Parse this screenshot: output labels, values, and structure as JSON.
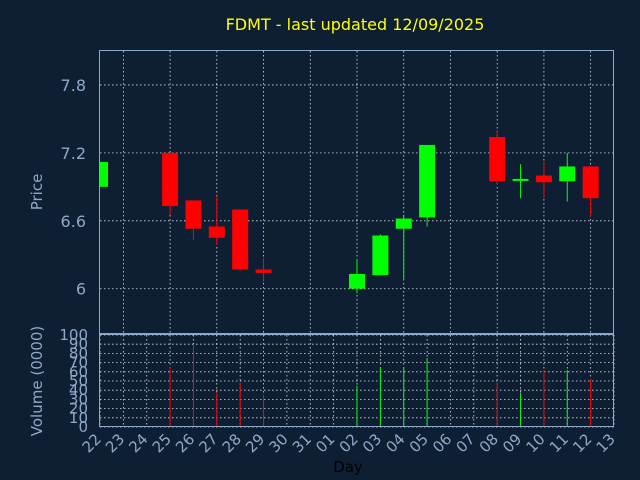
{
  "chart_data": {
    "type": "candlestick",
    "title": "FDMT - last updated 12/09/2025",
    "ylabel": "Price",
    "volume_label": "Volume (0000)",
    "xlabel": "Day",
    "ylim": [
      5.6,
      8.1
    ],
    "yticks": [
      "6",
      "6.6",
      "7.2",
      "7.8"
    ],
    "volume_ylim": [
      0,
      100
    ],
    "volume_ticks": [
      "0",
      "10",
      "20",
      "30",
      "40",
      "50",
      "60",
      "70",
      "80",
      "90",
      "100"
    ],
    "day_labels": [
      "22",
      "23",
      "24",
      "25",
      "26",
      "27",
      "28",
      "29",
      "30",
      "31",
      "01",
      "02",
      "03",
      "04",
      "05",
      "06",
      "07",
      "08",
      "09",
      "10",
      "11",
      "12",
      "13"
    ],
    "up_color": "#00ff00",
    "down_color": "#ff0000",
    "candles": [
      {
        "day": "22",
        "open": 6.9,
        "high": 7.12,
        "low": 6.9,
        "close": 7.12,
        "volume": 0
      },
      {
        "day": "25",
        "open": 7.2,
        "high": 7.2,
        "low": 6.65,
        "close": 6.73,
        "volume": 65
      },
      {
        "day": "26",
        "open": 6.78,
        "high": 6.78,
        "low": 6.43,
        "close": 6.53,
        "volume": 90
      },
      {
        "day": "27",
        "open": 6.55,
        "high": 6.82,
        "low": 6.39,
        "close": 6.45,
        "volume": 38
      },
      {
        "day": "28",
        "open": 6.7,
        "high": 6.7,
        "low": 6.16,
        "close": 6.17,
        "volume": 48
      },
      {
        "day": "29",
        "open": 6.17,
        "high": 6.27,
        "low": 6.06,
        "close": 6.14,
        "volume": 35
      },
      {
        "day": "02",
        "open": 6.0,
        "high": 6.26,
        "low": 5.96,
        "close": 6.13,
        "volume": 45
      },
      {
        "day": "03",
        "open": 6.12,
        "high": 6.48,
        "low": 6.12,
        "close": 6.47,
        "volume": 65
      },
      {
        "day": "04",
        "open": 6.53,
        "high": 6.64,
        "low": 6.08,
        "close": 6.62,
        "volume": 65
      },
      {
        "day": "05",
        "open": 6.63,
        "high": 7.27,
        "low": 6.55,
        "close": 7.27,
        "volume": 75
      },
      {
        "day": "08",
        "open": 7.34,
        "high": 7.4,
        "low": 6.92,
        "close": 6.95,
        "volume": 48
      },
      {
        "day": "09",
        "open": 6.96,
        "high": 7.1,
        "low": 6.8,
        "close": 6.97,
        "volume": 37
      },
      {
        "day": "10",
        "open": 7.0,
        "high": 7.12,
        "low": 6.8,
        "close": 6.94,
        "volume": 62
      },
      {
        "day": "11",
        "open": 6.95,
        "high": 7.2,
        "low": 6.77,
        "close": 7.08,
        "volume": 62
      },
      {
        "day": "12",
        "open": 7.08,
        "high": 7.08,
        "low": 6.64,
        "close": 6.8,
        "volume": 52
      }
    ]
  }
}
